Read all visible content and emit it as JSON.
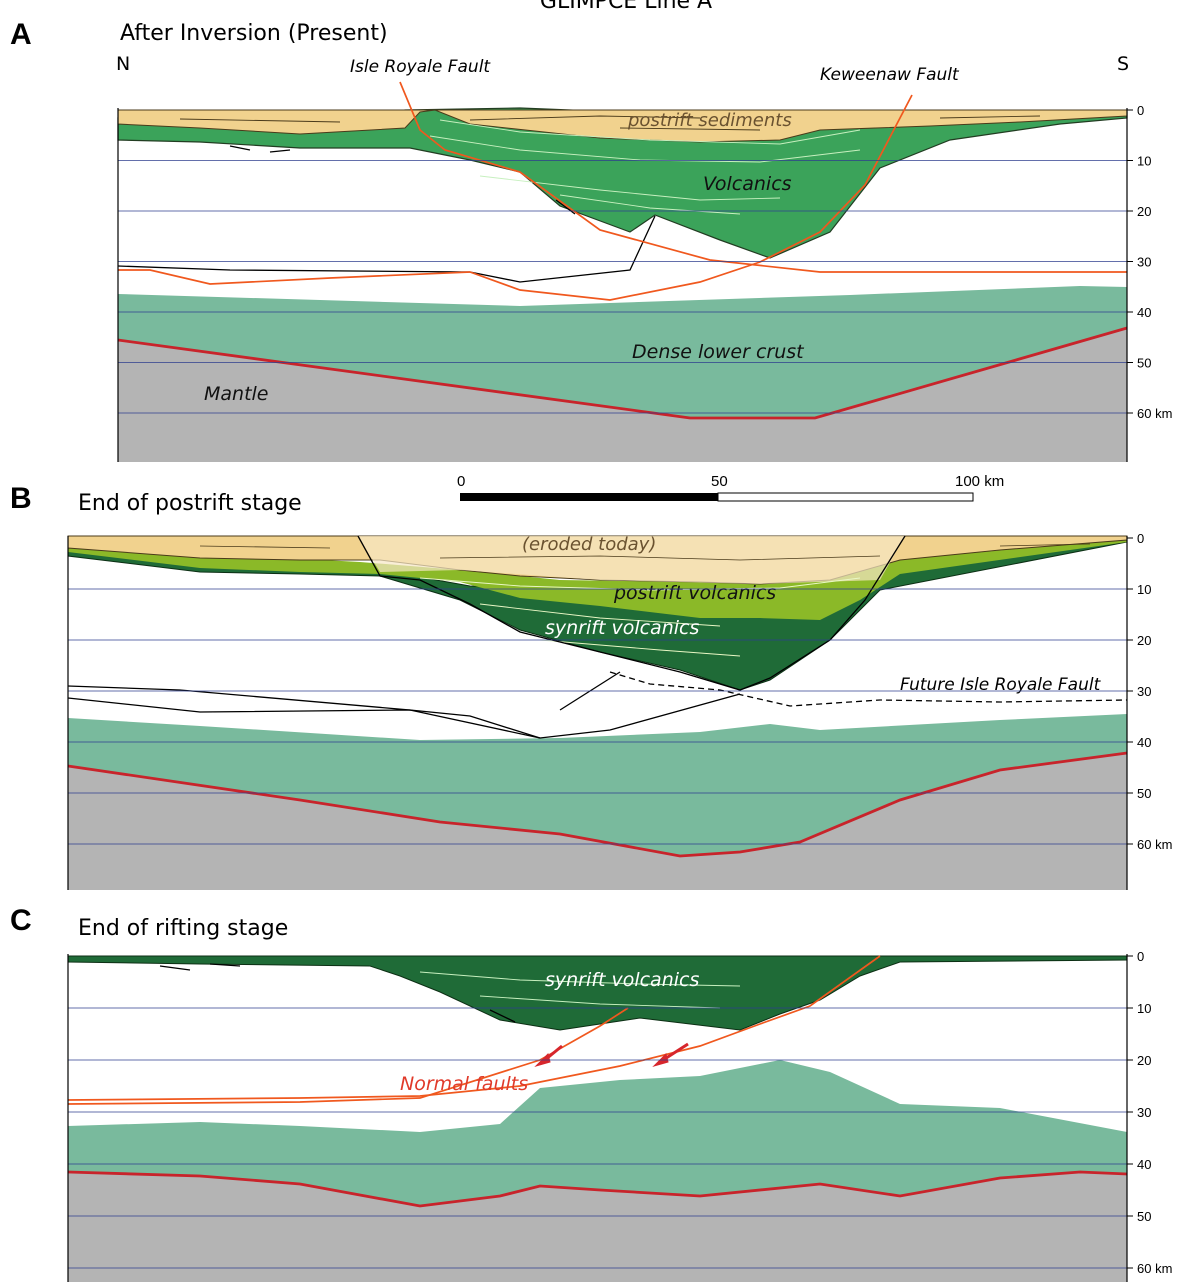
{
  "header": {
    "title": "GLIMPCE Line A"
  },
  "panels": {
    "a": {
      "letter": "A",
      "title": "After Inversion (Present)"
    },
    "b": {
      "letter": "B",
      "title": "End of postrift stage"
    },
    "c": {
      "letter": "C",
      "title": "End of rifting stage"
    }
  },
  "directions": {
    "north": "N",
    "south": "S"
  },
  "faults": {
    "isle_royale": "Isle Royale Fault",
    "keweenaw": "Keweenaw Fault",
    "future_isle_royale": "Future Isle Royale Fault",
    "normal": "Normal faults"
  },
  "units": {
    "postrift_sediments": "postrift sediments",
    "volcanics": "Volcanics",
    "dense_lower_crust": "Dense lower crust",
    "mantle": "Mantle",
    "eroded_today": "(eroded today)",
    "postrift_volcanics": "postrift volcanics",
    "synrift_volcanics": "synrift volcanics"
  },
  "depth_ticks": [
    "0",
    "10",
    "20",
    "30",
    "40",
    "50",
    "60 km"
  ],
  "scale_bar": {
    "labels": [
      "0",
      "50",
      "100 km"
    ]
  },
  "colors": {
    "sediments": "#f1d28e",
    "eroded": "#f6e7c4",
    "volcanics": "#3ba35a",
    "synrift": "#1f6b37",
    "postrift_volcanics": "#8bb928",
    "lower_crust": "#79ba9d",
    "mantle": "#b4b4b4",
    "moho": "#c8242b",
    "fault": "#f0581e",
    "gridline": "#2f3f8f"
  }
}
